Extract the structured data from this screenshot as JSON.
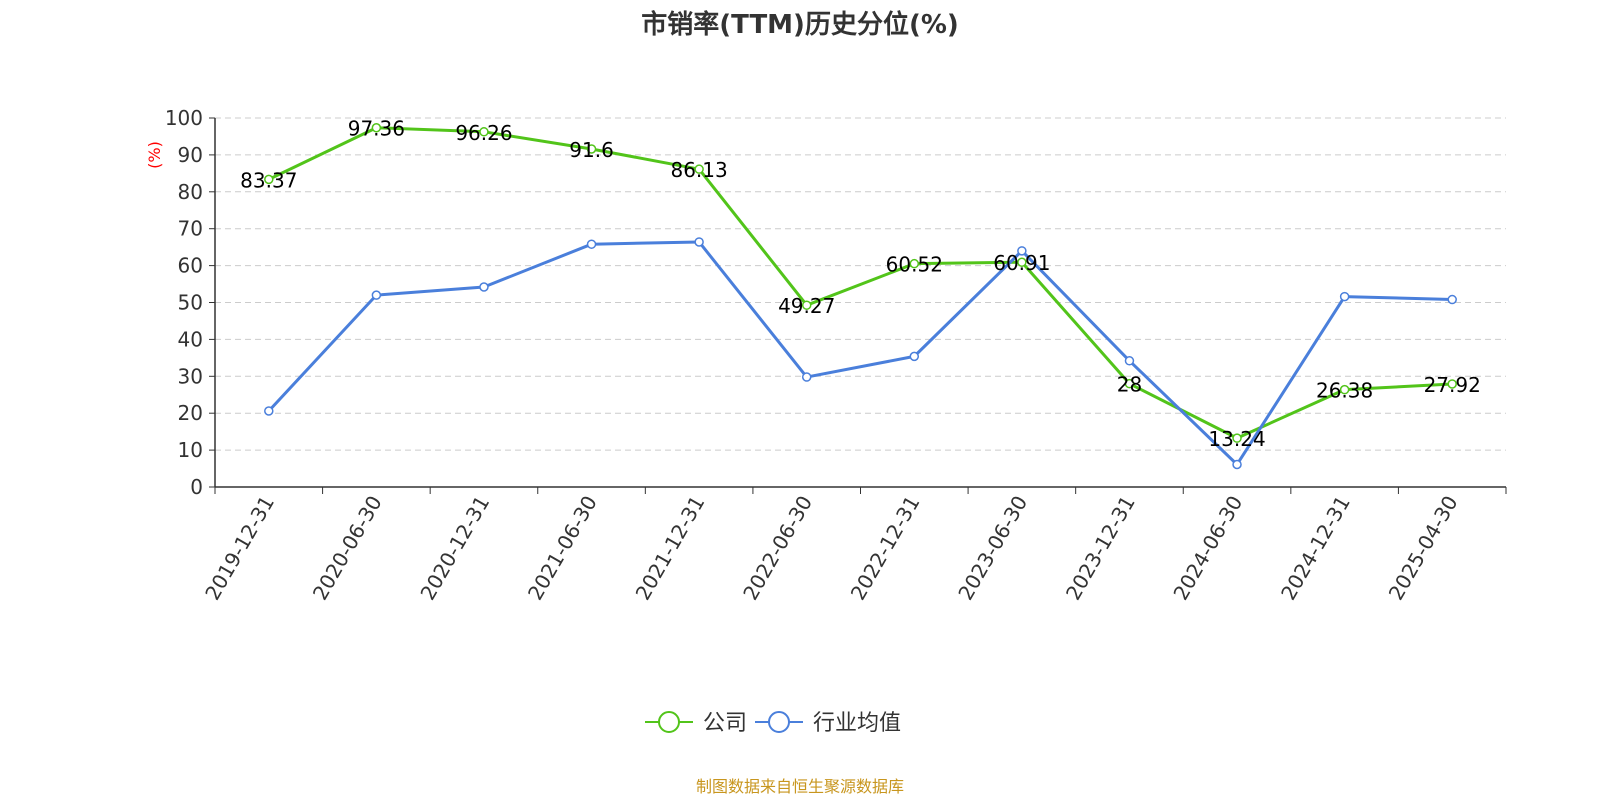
{
  "chart_data": {
    "type": "line",
    "title": "市销率(TTM)历史分位(%)",
    "y_unit": "(%)",
    "ylim": [
      0,
      100
    ],
    "y_ticks": [
      0,
      10,
      20,
      30,
      40,
      50,
      60,
      70,
      80,
      90,
      100
    ],
    "grid": true,
    "legend_position": "bottom-center",
    "categories": [
      "2019-12-31",
      "2020-06-30",
      "2020-12-31",
      "2021-06-30",
      "2021-12-31",
      "2022-06-30",
      "2022-12-31",
      "2023-06-30",
      "2023-12-31",
      "2024-06-30",
      "2024-12-31",
      "2025-04-30"
    ],
    "series": [
      {
        "name": "公司",
        "color": "#52c41a",
        "values": [
          83.37,
          97.36,
          96.26,
          91.6,
          86.13,
          49.27,
          60.52,
          60.91,
          28,
          13.24,
          26.38,
          27.92
        ],
        "labels": [
          "83.37",
          "97.36",
          "96.26",
          "91.6",
          "86.13",
          "49.27",
          "60.52",
          "60.91",
          "28",
          "13.24",
          "26.38",
          "27.92"
        ]
      },
      {
        "name": "行业均值",
        "color": "#4a7fdb",
        "values": [
          20.6,
          52.0,
          54.2,
          65.8,
          66.4,
          29.8,
          35.4,
          64.0,
          34.2,
          6.1,
          51.6,
          50.8
        ]
      }
    ],
    "source": "制图数据来自恒生聚源数据库"
  }
}
